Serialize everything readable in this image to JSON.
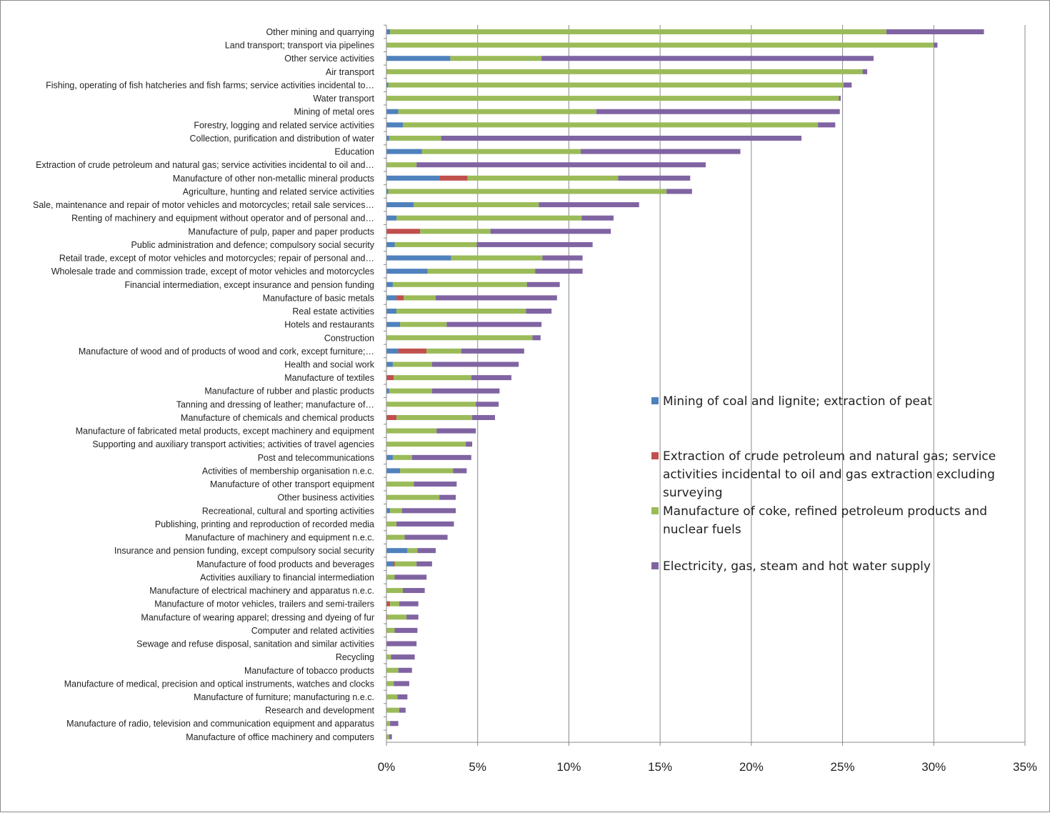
{
  "chart_data": {
    "type": "bar",
    "orientation": "horizontal",
    "stacked": true,
    "title": "",
    "xlabel": "",
    "ylabel": "",
    "xlim": [
      0,
      0.35
    ],
    "x_ticks": [
      0,
      0.05,
      0.1,
      0.15,
      0.2,
      0.25,
      0.3,
      0.35
    ],
    "x_tick_labels": [
      "0%",
      "5%",
      "10%",
      "15%",
      "20%",
      "25%",
      "30%",
      "35%"
    ],
    "grid": "vertical",
    "legend_position": "right",
    "categories": [
      "Other mining and quarrying",
      "Land transport; transport via pipelines",
      "Other service activities",
      "Air transport",
      "Fishing, operating of fish hatcheries and fish farms; service activities incidental to…",
      "Water transport",
      "Mining of metal ores",
      "Forestry, logging and related service activities",
      "Collection, purification and distribution of water",
      "Education",
      "Extraction of crude petroleum and natural gas; service activities incidental to oil and…",
      "Manufacture of other non-metallic mineral products",
      "Agriculture, hunting and related service activities",
      "Sale, maintenance and repair of motor vehicles and motorcycles; retail sale services…",
      "Renting of machinery and equipment without operator and of personal and…",
      "Manufacture of pulp, paper and paper products",
      "Public administration and defence; compulsory social security",
      "Retail trade, except of motor vehicles and motorcycles; repair of personal and…",
      "Wholesale trade and commission trade, except of motor vehicles and motorcycles",
      "Financial intermediation, except insurance and pension funding",
      "Manufacture of basic metals",
      "Real estate activities",
      "Hotels and restaurants",
      "Construction",
      "Manufacture of wood and of products of wood and cork, except furniture;…",
      "Health and social work",
      "Manufacture of textiles",
      "Manufacture of rubber and plastic products",
      "Tanning and dressing of leather; manufacture of…",
      "Manufacture of chemicals and chemical products",
      "Manufacture of fabricated metal products, except machinery and equipment",
      "Supporting and auxiliary transport activities; activities of travel agencies",
      "Post and telecommunications",
      "Activities of membership organisation n.e.c.",
      "Manufacture of other transport equipment",
      "Other business activities",
      "Recreational, cultural and sporting activities",
      "Publishing, printing and reproduction of recorded media",
      "Manufacture of machinery and equipment n.e.c.",
      "Insurance and pension funding, except compulsory social security",
      "Manufacture of food products and beverages",
      "Activities auxiliary to financial intermediation",
      "Manufacture of electrical machinery and apparatus n.e.c.",
      "Manufacture of motor vehicles, trailers and semi-trailers",
      "Manufacture of wearing apparel; dressing and dyeing of fur",
      "Computer and related activities",
      "Sewage and refuse disposal, sanitation and similar activities",
      "Recycling",
      "Manufacture of tobacco products",
      "Manufacture of medical, precision and optical instruments, watches and clocks",
      "Manufacture of furniture; manufacturing n.e.c.",
      "Research and development",
      "Manufacture of radio, television and communication equipment and apparatus",
      "Manufacture of office machinery and computers"
    ],
    "series": [
      {
        "name": "Mining of coal and lignite; extraction of peat",
        "color": "#4f81bd",
        "values": [
          0.002,
          0.0,
          0.035,
          0.0,
          0.001,
          0.0,
          0.0065,
          0.009,
          0.0015,
          0.0195,
          0.0,
          0.029,
          0.001,
          0.015,
          0.0055,
          0.0,
          0.0045,
          0.0355,
          0.0225,
          0.0035,
          0.0055,
          0.0055,
          0.0075,
          0.0,
          0.0065,
          0.0035,
          0.0,
          0.0015,
          0.0,
          0.0,
          0.0,
          0.0,
          0.0035,
          0.0075,
          0.0,
          0.0,
          0.002,
          0.0,
          0.0,
          0.0115,
          0.0035,
          0.0,
          0.0,
          0.0,
          0.0,
          0.0,
          0.0,
          0.0,
          0.0,
          0.0,
          0.0,
          0.0,
          0.0,
          0.0
        ]
      },
      {
        "name": "Extraction of crude petroleum and natural gas; service activities incidental to oil and gas extraction excluding surveying",
        "color": "#c0504d",
        "values": [
          0.0,
          0.0,
          0.0,
          0.0,
          0.0,
          0.0,
          0.0,
          0.0,
          0.0,
          0.0,
          0.0,
          0.0155,
          0.0,
          0.0,
          0.0,
          0.0185,
          0.0,
          0.0,
          0.0,
          0.0,
          0.004,
          0.0,
          0.0,
          0.0,
          0.0155,
          0.0,
          0.004,
          0.0,
          0.0,
          0.0055,
          0.0,
          0.0,
          0.0,
          0.0,
          0.0,
          0.0,
          0.0,
          0.0,
          0.0,
          0.0,
          0.001,
          0.0,
          0.0,
          0.002,
          0.0005,
          0.0,
          0.0,
          0.0,
          0.0,
          0.0,
          0.0,
          0.0,
          0.0,
          0.0
        ]
      },
      {
        "name": "Manufacture of coke, refined petroleum products and nuclear fuels",
        "color": "#9bbb59",
        "values": [
          0.272,
          0.3,
          0.05,
          0.261,
          0.2495,
          0.248,
          0.1085,
          0.2275,
          0.0285,
          0.087,
          0.0165,
          0.0825,
          0.1525,
          0.0685,
          0.1015,
          0.0385,
          0.045,
          0.05,
          0.059,
          0.0735,
          0.0175,
          0.071,
          0.0255,
          0.08,
          0.019,
          0.0215,
          0.0425,
          0.0235,
          0.049,
          0.0415,
          0.0275,
          0.0435,
          0.0105,
          0.029,
          0.015,
          0.029,
          0.0065,
          0.0055,
          0.01,
          0.0055,
          0.012,
          0.0045,
          0.009,
          0.005,
          0.0105,
          0.0045,
          0.0,
          0.0025,
          0.0065,
          0.004,
          0.006,
          0.007,
          0.002,
          0.0015
        ]
      },
      {
        "name": "Electricity, gas, steam and hot water supply",
        "color": "#8064a2",
        "values": [
          0.0535,
          0.002,
          0.182,
          0.0025,
          0.0045,
          0.001,
          0.1335,
          0.0095,
          0.1975,
          0.0875,
          0.1585,
          0.0395,
          0.014,
          0.055,
          0.0175,
          0.066,
          0.0635,
          0.022,
          0.026,
          0.018,
          0.0665,
          0.014,
          0.052,
          0.0045,
          0.0345,
          0.0475,
          0.022,
          0.037,
          0.0125,
          0.0125,
          0.0215,
          0.0035,
          0.0325,
          0.0075,
          0.0235,
          0.009,
          0.0295,
          0.0315,
          0.0235,
          0.01,
          0.0085,
          0.0175,
          0.012,
          0.0105,
          0.0065,
          0.0125,
          0.0165,
          0.013,
          0.0075,
          0.0085,
          0.0055,
          0.0035,
          0.0045,
          0.0015
        ]
      }
    ]
  }
}
